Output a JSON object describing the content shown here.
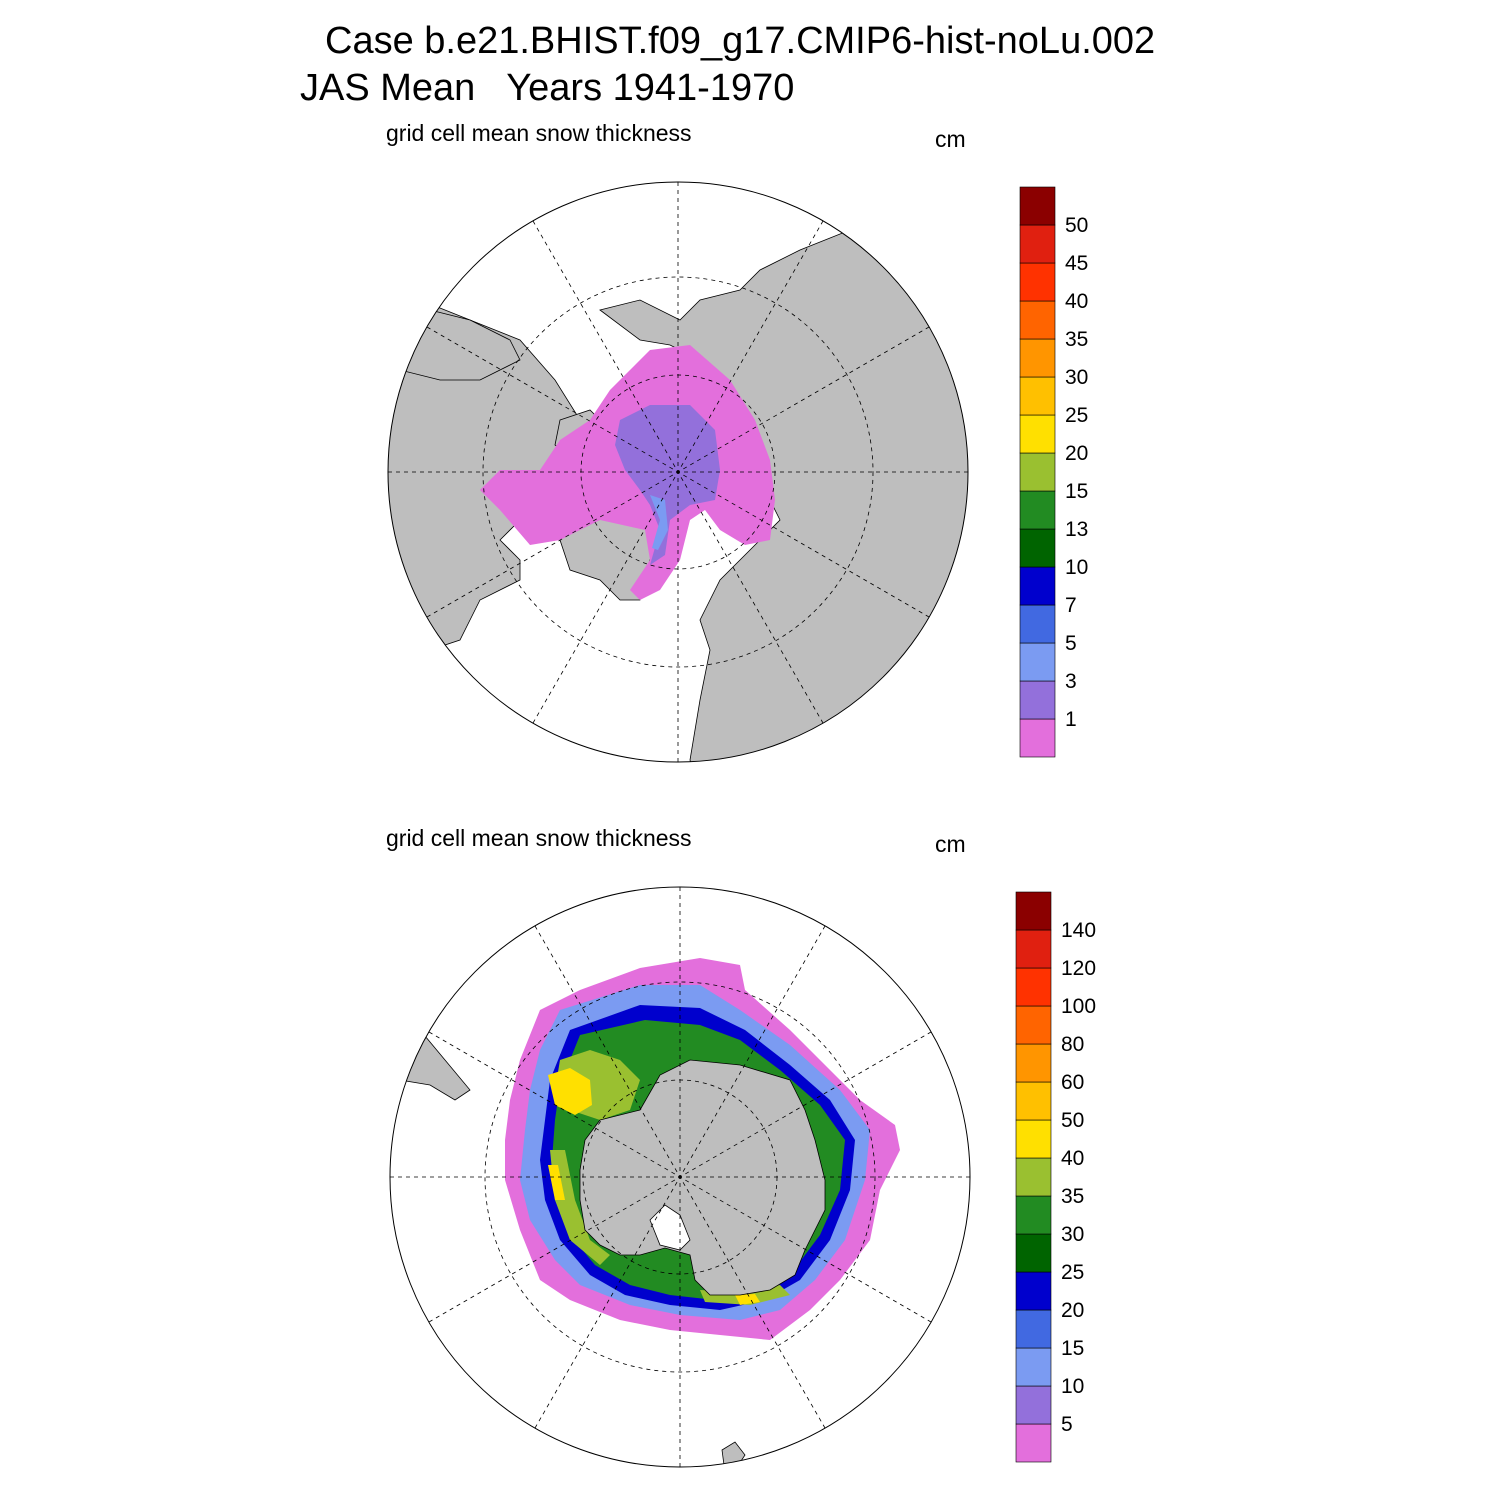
{
  "title": {
    "line1": "Case b.e21.BHIST.f09_g17.CMIP6-hist-noLu.002",
    "line2": "JAS Mean   Years 1941-1970"
  },
  "panels": [
    {
      "id": "north",
      "hemisphere": "Northern Hemisphere (polar stereographic)",
      "subtitle": "grid cell mean snow thickness",
      "units": "cm",
      "colorbar": {
        "labels": [
          "1",
          "3",
          "5",
          "7",
          "10",
          "13",
          "15",
          "20",
          "25",
          "30",
          "35",
          "40",
          "45",
          "50"
        ],
        "colors": [
          "#e36fdc",
          "#9370db",
          "#7b9bf2",
          "#4169e1",
          "#0000cd",
          "#006400",
          "#228b22",
          "#9ac030",
          "#ffe000",
          "#ffc000",
          "#ff9500",
          "#ff6400",
          "#ff3200",
          "#e02010",
          "#8b0000"
        ]
      }
    },
    {
      "id": "south",
      "hemisphere": "Southern Hemisphere (polar stereographic)",
      "subtitle": "grid cell mean snow thickness",
      "units": "cm",
      "colorbar": {
        "labels": [
          "5",
          "10",
          "15",
          "20",
          "25",
          "30",
          "35",
          "40",
          "50",
          "60",
          "80",
          "100",
          "120",
          "140"
        ],
        "colors": [
          "#e36fdc",
          "#9370db",
          "#7b9bf2",
          "#4169e1",
          "#0000cd",
          "#006400",
          "#228b22",
          "#9ac030",
          "#ffe000",
          "#ffc000",
          "#ff9500",
          "#ff6400",
          "#ff3200",
          "#e02010",
          "#8b0000"
        ]
      }
    }
  ],
  "style": {
    "land": "#bebebe",
    "ocean": "#ffffff",
    "coast": "#000000"
  }
}
